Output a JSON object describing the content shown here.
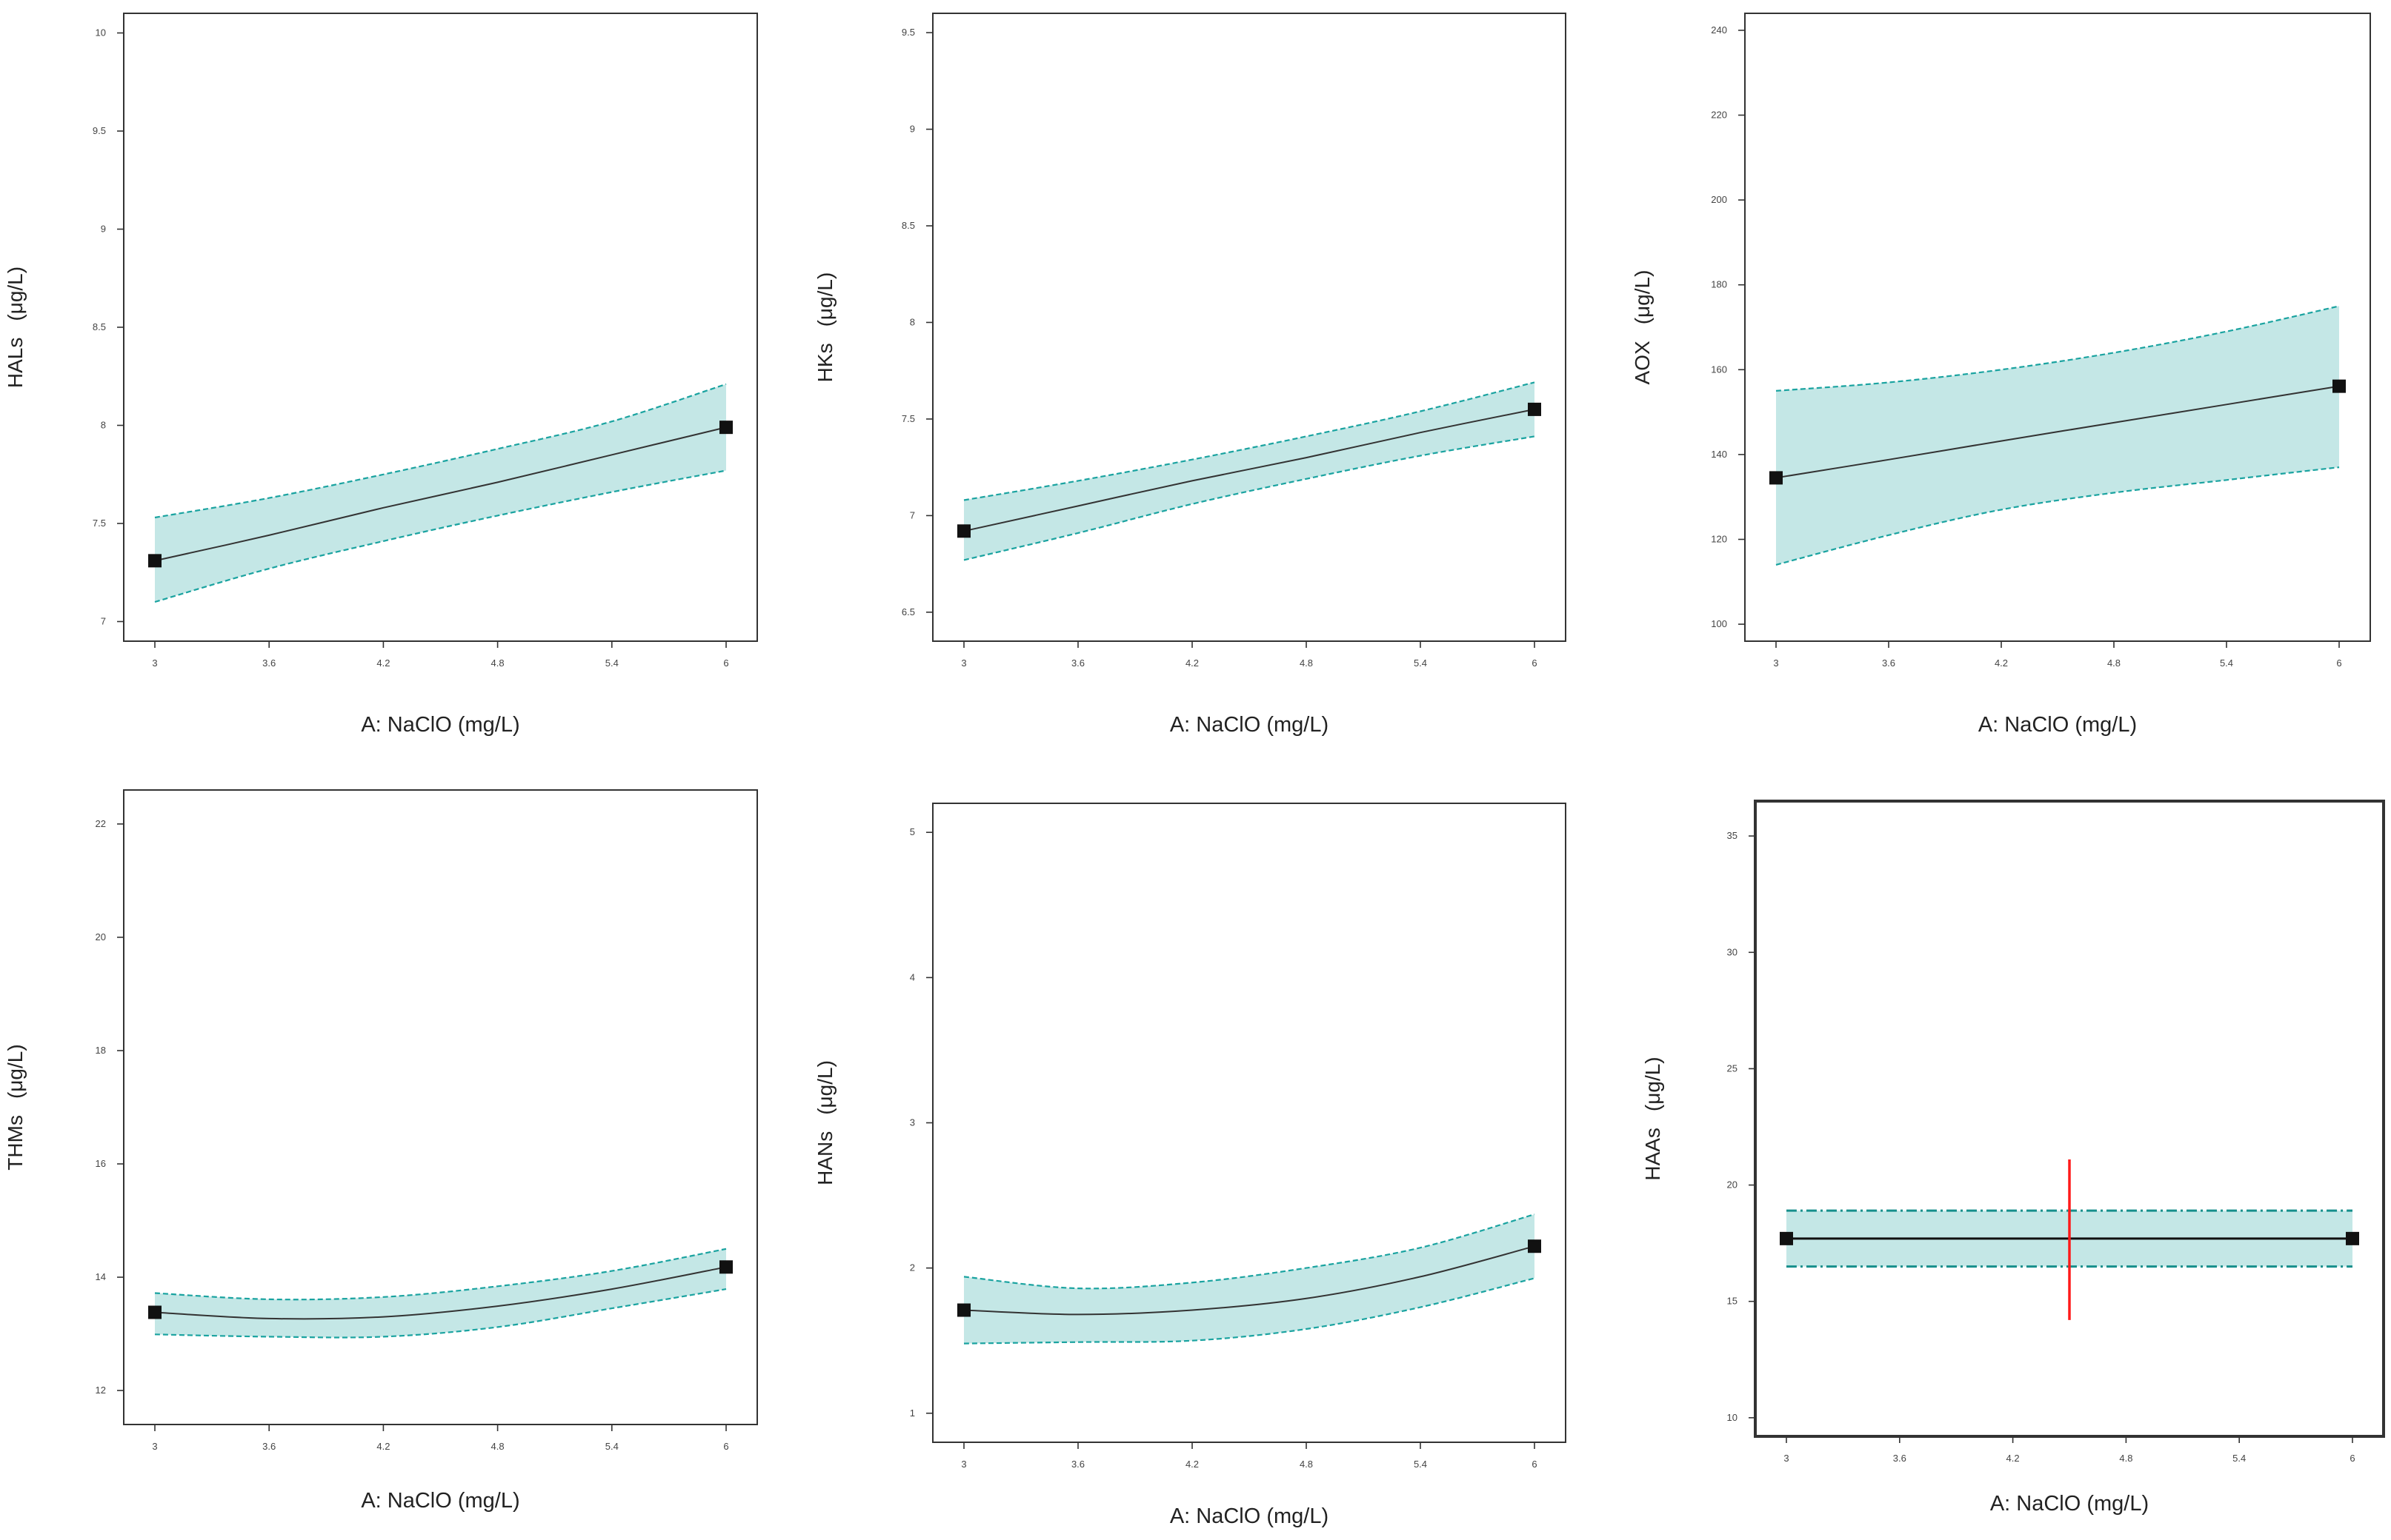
{
  "colors": {
    "band_fill": "#c4e7e6",
    "band_edge": "#1aa3a0",
    "band_edge_dark": "#168f8c",
    "line": "#333333",
    "marker": "#111111",
    "frame": "#333333",
    "vline": "#ff1a1a"
  },
  "chart_data": [
    {
      "type": "line",
      "id": "hals",
      "xlabel": "A: NaClO (mg/L)",
      "ylabel": "HALs",
      "yunit": "(μg/L)",
      "xlim": [
        3,
        6
      ],
      "ylim": [
        6.9,
        10.1
      ],
      "xticks": [
        "3",
        "3.6",
        "4.2",
        "4.8",
        "5.4",
        "6"
      ],
      "yticks": [
        "7",
        "7.5",
        "8",
        "8.5",
        "9",
        "9.5",
        "10"
      ],
      "x": [
        3,
        3.6,
        4.2,
        4.8,
        5.4,
        6
      ],
      "fit": [
        7.31,
        7.44,
        7.58,
        7.71,
        7.85,
        7.99
      ],
      "upper": [
        7.53,
        7.63,
        7.75,
        7.88,
        8.02,
        8.21
      ],
      "lower": [
        7.1,
        7.27,
        7.41,
        7.54,
        7.66,
        7.77
      ],
      "design_points": [
        [
          3,
          7.31
        ],
        [
          6,
          7.99
        ]
      ]
    },
    {
      "type": "line",
      "id": "hks",
      "xlabel": "A: NaClO (mg/L)",
      "ylabel": "HKs",
      "yunit": "(μg/L)",
      "xlim": [
        3,
        6
      ],
      "ylim": [
        6.35,
        9.6
      ],
      "xticks": [
        "3",
        "3.6",
        "4.2",
        "4.8",
        "5.4",
        "6"
      ],
      "yticks": [
        "6.5",
        "7",
        "7.5",
        "8",
        "8.5",
        "9",
        "9.5"
      ],
      "x": [
        3,
        3.6,
        4.2,
        4.8,
        5.4,
        6
      ],
      "fit": [
        6.92,
        7.05,
        7.18,
        7.3,
        7.43,
        7.55
      ],
      "upper": [
        7.08,
        7.18,
        7.29,
        7.41,
        7.54,
        7.69
      ],
      "lower": [
        6.77,
        6.91,
        7.06,
        7.19,
        7.31,
        7.41
      ],
      "design_points": [
        [
          3,
          6.92
        ],
        [
          6,
          7.55
        ]
      ]
    },
    {
      "type": "line",
      "id": "aox",
      "xlabel": "A: NaClO (mg/L)",
      "ylabel": "AOX",
      "yunit": "(μg/L)",
      "xlim": [
        3,
        6
      ],
      "ylim": [
        96,
        244
      ],
      "xticks": [
        "3",
        "3.6",
        "4.2",
        "4.8",
        "5.4",
        "6"
      ],
      "yticks": [
        "100",
        "120",
        "140",
        "160",
        "180",
        "200",
        "220",
        "240"
      ],
      "x": [
        3,
        3.6,
        4.2,
        4.8,
        5.4,
        6
      ],
      "fit": [
        134.5,
        138.8,
        143.2,
        147.5,
        151.8,
        156.1
      ],
      "upper": [
        155,
        157,
        160,
        164,
        169,
        175
      ],
      "lower": [
        114,
        121,
        127,
        131,
        134,
        137
      ],
      "design_points": [
        [
          3,
          134.5
        ],
        [
          6,
          156.1
        ]
      ]
    },
    {
      "type": "line",
      "id": "thms",
      "xlabel": "A: NaClO (mg/L)",
      "ylabel": "THMs",
      "yunit": "(μg/L)",
      "xlim": [
        3,
        6
      ],
      "ylim": [
        11.4,
        22.6
      ],
      "xticks": [
        "3",
        "3.6",
        "4.2",
        "4.8",
        "5.4",
        "6"
      ],
      "yticks": [
        "12",
        "14",
        "16",
        "18",
        "20",
        "22"
      ],
      "x": [
        3,
        3.6,
        4.2,
        4.8,
        5.4,
        6
      ],
      "fit": [
        13.38,
        13.27,
        13.3,
        13.49,
        13.79,
        14.18
      ],
      "upper": [
        13.72,
        13.61,
        13.65,
        13.84,
        14.11,
        14.5
      ],
      "lower": [
        12.99,
        12.95,
        12.95,
        13.12,
        13.45,
        13.79
      ],
      "design_points": [
        [
          3,
          13.38
        ],
        [
          6,
          14.18
        ]
      ]
    },
    {
      "type": "line",
      "id": "hans",
      "xlabel": "A: NaClO (mg/L)",
      "ylabel": "HANs",
      "yunit": "(μg/L)",
      "xlim": [
        3,
        6
      ],
      "ylim": [
        0.8,
        5.2
      ],
      "xticks": [
        "3",
        "3.6",
        "4.2",
        "4.8",
        "5.4",
        "6"
      ],
      "yticks": [
        "1",
        "2",
        "3",
        "4",
        "5"
      ],
      "x": [
        3,
        3.6,
        4.2,
        4.8,
        5.4,
        6
      ],
      "fit": [
        1.71,
        1.68,
        1.71,
        1.79,
        1.94,
        2.15
      ],
      "upper": [
        1.94,
        1.86,
        1.9,
        2.0,
        2.14,
        2.37
      ],
      "lower": [
        1.48,
        1.49,
        1.5,
        1.58,
        1.73,
        1.93
      ],
      "design_points": [
        [
          3,
          1.71
        ],
        [
          6,
          2.15
        ]
      ]
    },
    {
      "type": "line",
      "id": "haas",
      "xlabel": "A: NaClO (mg/L)",
      "ylabel": "HAAs",
      "yunit": "(μg/L)",
      "xlim": [
        3,
        6
      ],
      "ylim": [
        9.2,
        36.5
      ],
      "xticks": [
        "3",
        "3.6",
        "4.2",
        "4.8",
        "5.4",
        "6"
      ],
      "yticks": [
        "10",
        "15",
        "20",
        "25",
        "30",
        "35"
      ],
      "x": [
        3,
        3.6,
        4.2,
        4.8,
        5.4,
        6
      ],
      "fit": [
        17.7,
        17.7,
        17.7,
        17.7,
        17.7,
        17.7
      ],
      "upper": [
        18.9,
        18.9,
        18.9,
        18.9,
        18.9,
        18.9
      ],
      "lower": [
        16.5,
        16.5,
        16.5,
        16.5,
        16.5,
        16.5
      ],
      "design_points": [
        [
          3,
          17.7
        ],
        [
          6,
          17.7
        ]
      ],
      "marker_line": {
        "x": 4.5,
        "y_from": 14.2,
        "y_to": 21.1
      }
    }
  ]
}
